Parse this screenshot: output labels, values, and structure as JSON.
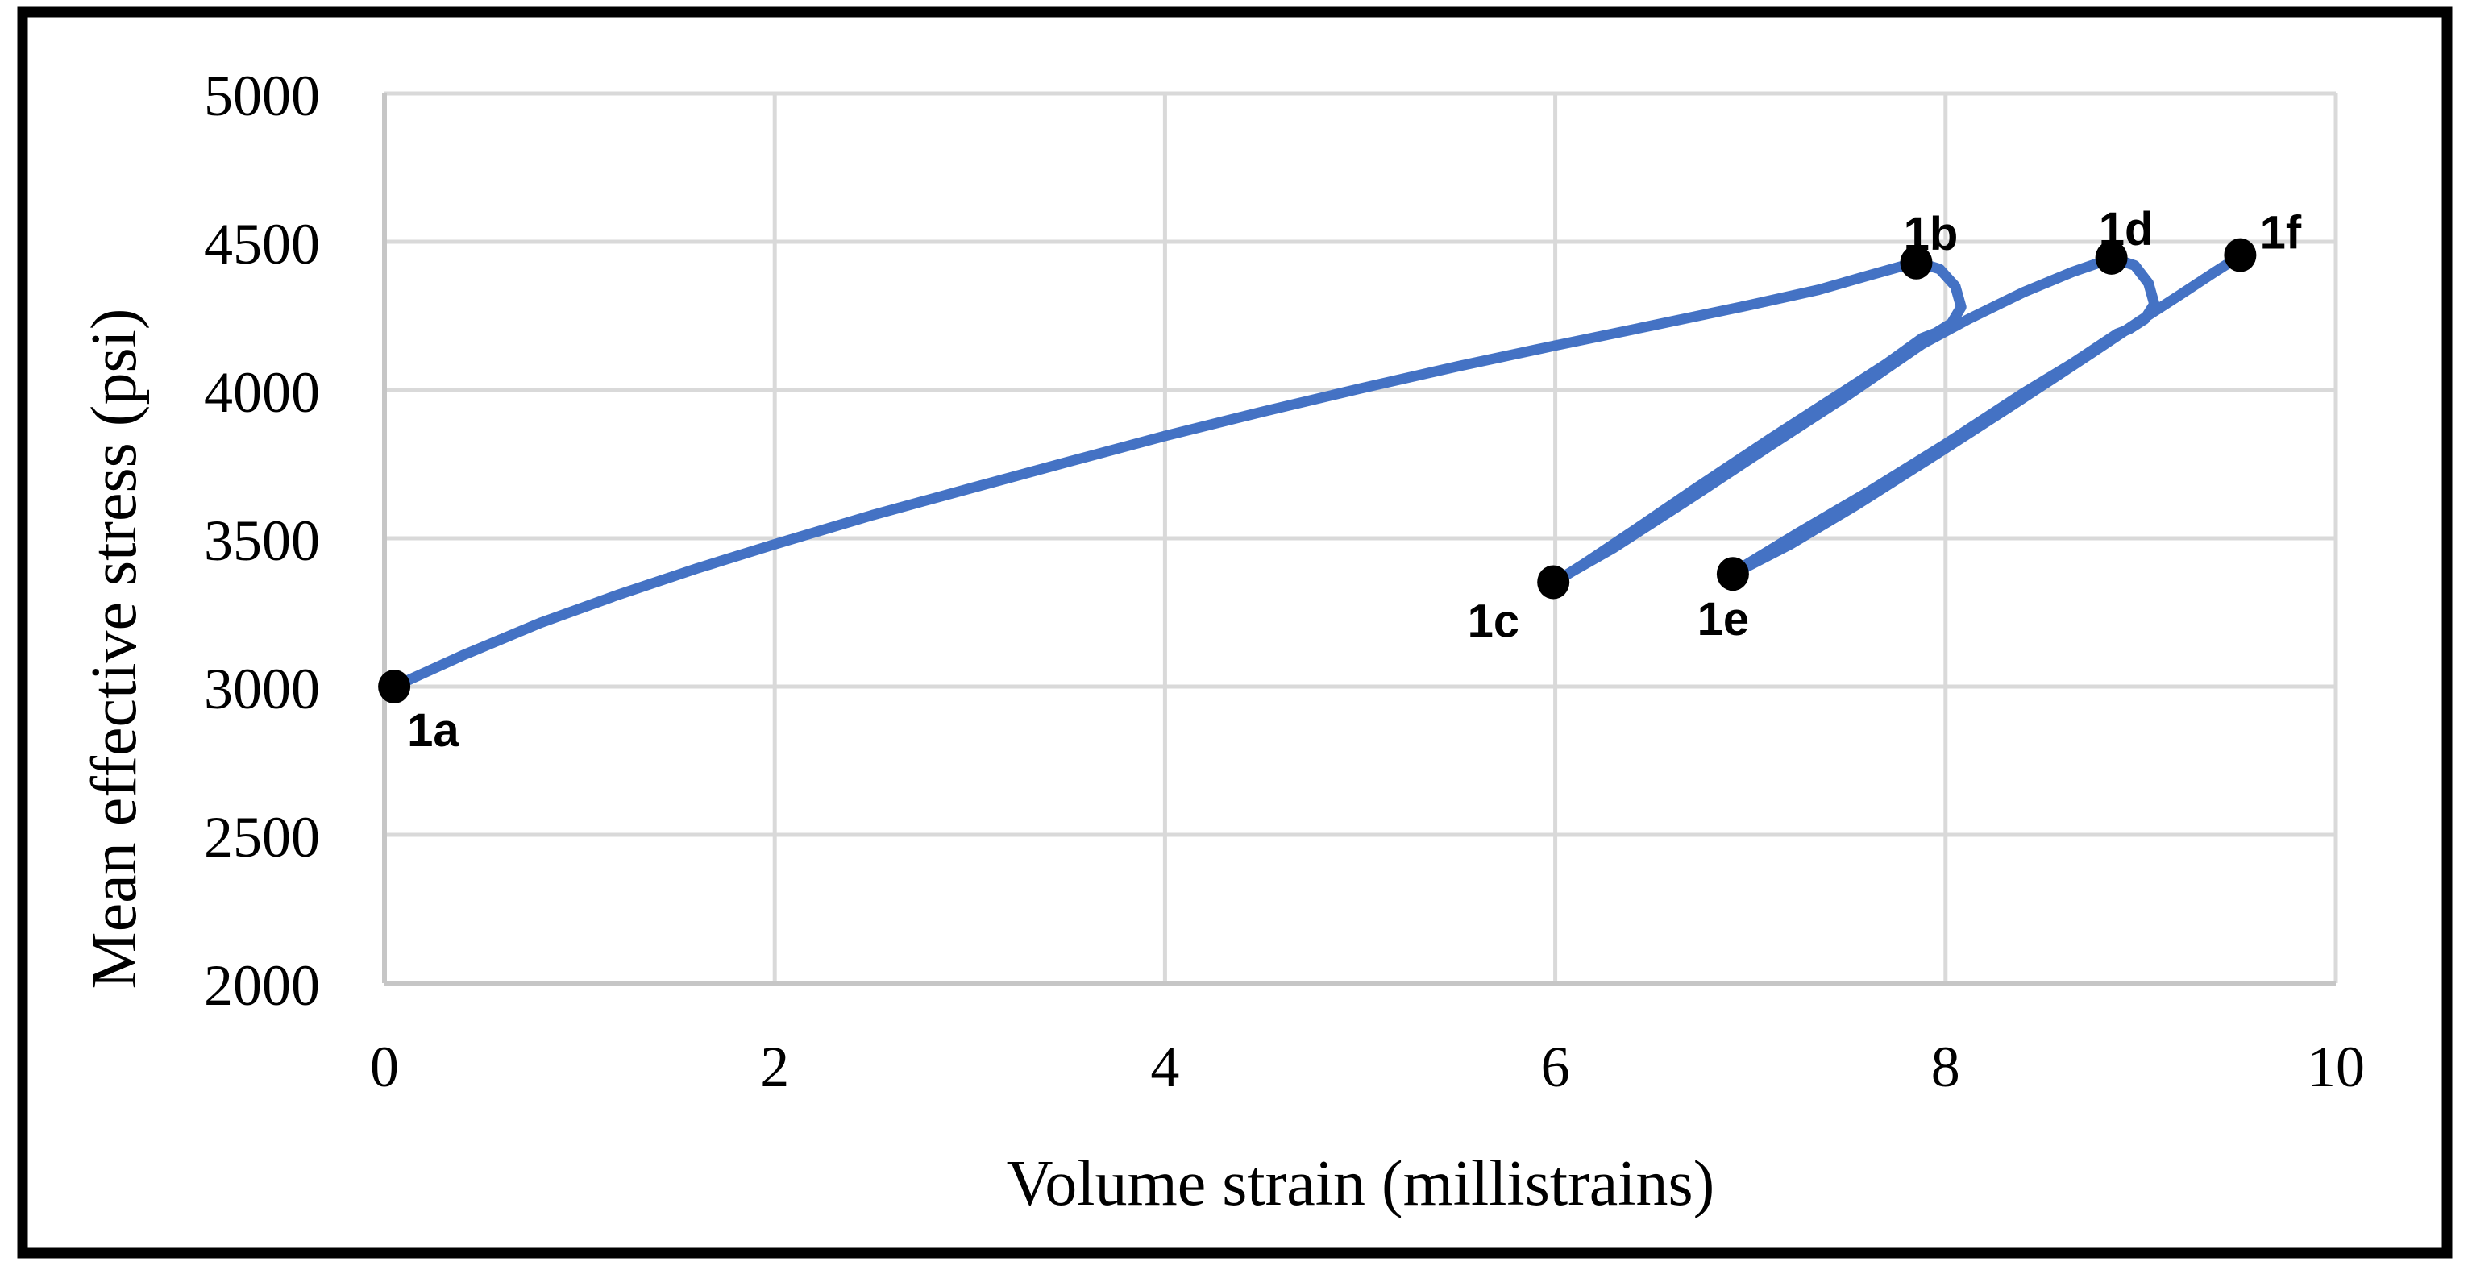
{
  "figure": {
    "border_color": "#000000",
    "background_color": "#ffffff"
  },
  "chart_data": {
    "type": "line",
    "title": "",
    "xlabel": "Volume strain (millistrains)",
    "ylabel": "Mean effective stress (psi)",
    "xlim": [
      0,
      10
    ],
    "ylim": [
      2000,
      5000
    ],
    "xticks": [
      0,
      2,
      4,
      6,
      8,
      10
    ],
    "yticks": [
      2000,
      2500,
      3000,
      3500,
      4000,
      4500,
      5000
    ],
    "grid": true,
    "legend": "none",
    "line_color": "#4472C4",
    "grid_color": "#D9D9D9",
    "axis_line_color": "#C6C6C6",
    "marker_color": "#000000",
    "points": [
      {
        "label": "1a",
        "x": 0.05,
        "y": 3000,
        "label_pos": "below-right"
      },
      {
        "label": "1b",
        "x": 7.85,
        "y": 4430,
        "label_pos": "above"
      },
      {
        "label": "1c",
        "x": 5.99,
        "y": 3352,
        "label_pos": "below-left"
      },
      {
        "label": "1d",
        "x": 8.85,
        "y": 4446,
        "label_pos": "above"
      },
      {
        "label": "1e",
        "x": 6.91,
        "y": 3380,
        "label_pos": "below"
      },
      {
        "label": "1f",
        "x": 9.51,
        "y": 4455,
        "label_pos": "above-right"
      }
    ],
    "series": [
      {
        "name": "loading-1a-to-1b",
        "points": [
          [
            0.05,
            3000
          ],
          [
            0.4,
            3105
          ],
          [
            0.8,
            3215
          ],
          [
            1.2,
            3310
          ],
          [
            1.6,
            3398
          ],
          [
            2.0,
            3480
          ],
          [
            2.5,
            3578
          ],
          [
            3.0,
            3668
          ],
          [
            3.5,
            3757
          ],
          [
            4.0,
            3845
          ],
          [
            4.5,
            3927
          ],
          [
            5.0,
            4005
          ],
          [
            5.5,
            4080
          ],
          [
            6.0,
            4150
          ],
          [
            6.5,
            4218
          ],
          [
            7.0,
            4287
          ],
          [
            7.35,
            4338
          ],
          [
            7.6,
            4385
          ],
          [
            7.8,
            4422
          ],
          [
            7.85,
            4432
          ]
        ]
      },
      {
        "name": "unloading-1b-to-1c",
        "points": [
          [
            7.85,
            4432
          ],
          [
            7.97,
            4408
          ],
          [
            8.05,
            4350
          ],
          [
            8.08,
            4280
          ],
          [
            8.03,
            4225
          ],
          [
            7.95,
            4193
          ],
          [
            7.88,
            4175
          ],
          [
            7.7,
            4090
          ],
          [
            7.5,
            4005
          ],
          [
            7.1,
            3835
          ],
          [
            6.7,
            3660
          ],
          [
            6.4,
            3525
          ],
          [
            6.15,
            3415
          ],
          [
            6.03,
            3365
          ],
          [
            5.99,
            3352
          ]
        ]
      },
      {
        "name": "reloading-1c-to-1d",
        "points": [
          [
            5.99,
            3352
          ],
          [
            6.3,
            3468
          ],
          [
            6.7,
            3638
          ],
          [
            7.1,
            3812
          ],
          [
            7.5,
            3983
          ],
          [
            7.88,
            4155
          ],
          [
            8.12,
            4240
          ],
          [
            8.4,
            4330
          ],
          [
            8.65,
            4398
          ],
          [
            8.8,
            4432
          ],
          [
            8.85,
            4446
          ]
        ]
      },
      {
        "name": "unloading-1d-to-1e",
        "points": [
          [
            8.85,
            4446
          ],
          [
            8.97,
            4420
          ],
          [
            9.04,
            4360
          ],
          [
            9.07,
            4290
          ],
          [
            9.02,
            4238
          ],
          [
            8.94,
            4205
          ],
          [
            8.88,
            4190
          ],
          [
            8.65,
            4090
          ],
          [
            8.4,
            3990
          ],
          [
            8.0,
            3818
          ],
          [
            7.6,
            3655
          ],
          [
            7.25,
            3520
          ],
          [
            7.05,
            3440
          ],
          [
            6.94,
            3396
          ],
          [
            6.91,
            3380
          ]
        ]
      },
      {
        "name": "reloading-1e-to-1f",
        "points": [
          [
            6.91,
            3380
          ],
          [
            7.2,
            3478
          ],
          [
            7.55,
            3615
          ],
          [
            7.95,
            3782
          ],
          [
            8.35,
            3952
          ],
          [
            8.75,
            4125
          ],
          [
            9.0,
            4235
          ],
          [
            9.2,
            4320
          ],
          [
            9.38,
            4398
          ],
          [
            9.48,
            4440
          ],
          [
            9.51,
            4455
          ]
        ]
      }
    ]
  }
}
